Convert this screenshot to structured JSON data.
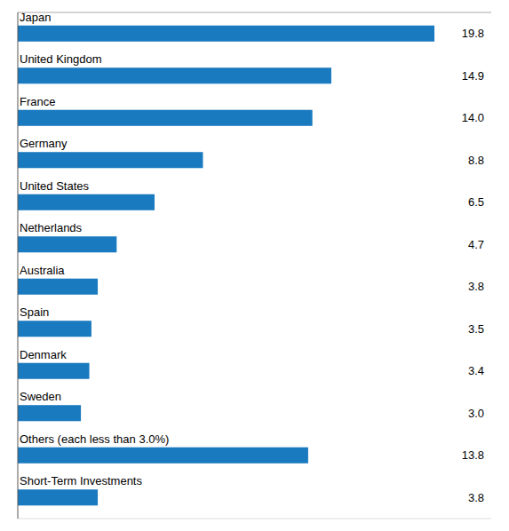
{
  "chart_data": {
    "type": "bar",
    "orientation": "horizontal",
    "categories": [
      "Japan",
      "United Kingdom",
      "France",
      "Germany",
      "United States",
      "Netherlands",
      "Australia",
      "Spain",
      "Denmark",
      "Sweden",
      "Others (each less than 3.0%)",
      "Short-Term Investments"
    ],
    "values": [
      19.8,
      14.9,
      14.0,
      8.8,
      6.5,
      4.7,
      3.8,
      3.5,
      3.4,
      3.0,
      13.8,
      3.8
    ],
    "value_labels": [
      "19.8",
      "14.9",
      "14.0",
      "8.8",
      "6.5",
      "4.7",
      "3.8",
      "3.5",
      "3.4",
      "3.0",
      "13.8",
      "3.8"
    ],
    "color": "#1a7abf",
    "xlim": [
      0,
      22.5
    ],
    "tick_labels": false,
    "data_labels": true,
    "grid": false
  }
}
